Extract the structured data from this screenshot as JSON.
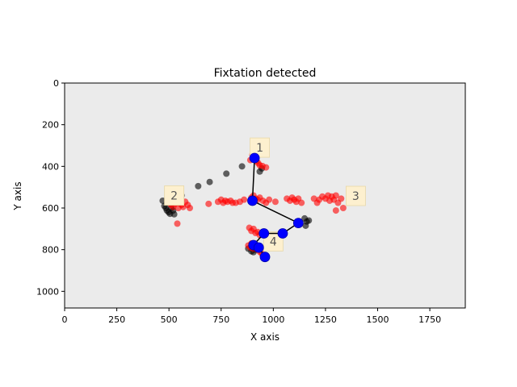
{
  "chart_data": {
    "type": "scatter",
    "title": "Fixtation detected",
    "xlabel": "X axis",
    "ylabel": "Y axis",
    "xlim": [
      0,
      1920
    ],
    "ylim": [
      1080,
      0
    ],
    "y_inverted": true,
    "x_ticks": [
      0,
      250,
      500,
      750,
      1000,
      1250,
      1500,
      1750
    ],
    "x_tick_labels": [
      "0",
      "250",
      "500",
      "750",
      "1000",
      "1250",
      "1500",
      "1750"
    ],
    "y_ticks": [
      0,
      200,
      400,
      600,
      800,
      1000
    ],
    "y_tick_labels": [
      "0",
      "200",
      "400",
      "600",
      "800",
      "1000"
    ],
    "background_color": "#ebebeb",
    "grid": false,
    "series": [
      {
        "role": "raw_gaze_points",
        "color": "#000000",
        "alpha": 0.6,
        "points": [
          [
            470,
            565
          ],
          [
            478,
            590
          ],
          [
            485,
            600
          ],
          [
            490,
            612
          ],
          [
            498,
            620
          ],
          [
            505,
            628
          ],
          [
            512,
            600
          ],
          [
            520,
            612
          ],
          [
            525,
            630
          ],
          [
            560,
            540
          ],
          [
            640,
            495
          ],
          [
            695,
            475
          ],
          [
            775,
            435
          ],
          [
            850,
            400
          ],
          [
            935,
            425
          ],
          [
            945,
            410
          ],
          [
            1150,
            650
          ],
          [
            1160,
            665
          ],
          [
            1170,
            660
          ],
          [
            1155,
            685
          ],
          [
            880,
            795
          ],
          [
            895,
            808
          ],
          [
            905,
            812
          ],
          [
            915,
            800
          ],
          [
            925,
            795
          ]
        ]
      },
      {
        "role": "fixation_samples",
        "color": "#ff0000",
        "alpha": 0.6,
        "points": [
          [
            495,
            565
          ],
          [
            502,
            575
          ],
          [
            510,
            585
          ],
          [
            515,
            560
          ],
          [
            520,
            595
          ],
          [
            525,
            570
          ],
          [
            530,
            580
          ],
          [
            538,
            560
          ],
          [
            545,
            600
          ],
          [
            550,
            575
          ],
          [
            560,
            585
          ],
          [
            568,
            595
          ],
          [
            578,
            570
          ],
          [
            590,
            585
          ],
          [
            600,
            600
          ],
          [
            540,
            675
          ],
          [
            690,
            580
          ],
          [
            735,
            570
          ],
          [
            750,
            560
          ],
          [
            760,
            575
          ],
          [
            770,
            565
          ],
          [
            780,
            570
          ],
          [
            795,
            565
          ],
          [
            805,
            575
          ],
          [
            820,
            575
          ],
          [
            840,
            570
          ],
          [
            860,
            560
          ],
          [
            900,
            345
          ],
          [
            910,
            360
          ],
          [
            920,
            375
          ],
          [
            928,
            385
          ],
          [
            935,
            395
          ],
          [
            948,
            398
          ],
          [
            965,
            405
          ],
          [
            890,
            370
          ],
          [
            895,
            550
          ],
          [
            905,
            540
          ],
          [
            915,
            555
          ],
          [
            925,
            560
          ],
          [
            935,
            550
          ],
          [
            950,
            565
          ],
          [
            965,
            575
          ],
          [
            980,
            560
          ],
          [
            1010,
            570
          ],
          [
            1065,
            555
          ],
          [
            1080,
            565
          ],
          [
            1090,
            550
          ],
          [
            1100,
            560
          ],
          [
            1110,
            570
          ],
          [
            1120,
            555
          ],
          [
            1135,
            575
          ],
          [
            1195,
            555
          ],
          [
            1210,
            575
          ],
          [
            1220,
            560
          ],
          [
            1235,
            545
          ],
          [
            1250,
            555
          ],
          [
            1262,
            540
          ],
          [
            1270,
            565
          ],
          [
            1280,
            545
          ],
          [
            1290,
            560
          ],
          [
            1300,
            540
          ],
          [
            1310,
            575
          ],
          [
            1325,
            555
          ],
          [
            1335,
            600
          ],
          [
            1300,
            612
          ],
          [
            885,
            695
          ],
          [
            895,
            710
          ],
          [
            905,
            700
          ],
          [
            915,
            720
          ],
          [
            925,
            715
          ],
          [
            935,
            730
          ],
          [
            880,
            780
          ],
          [
            890,
            790
          ],
          [
            895,
            770
          ],
          [
            905,
            795
          ],
          [
            915,
            780
          ],
          [
            925,
            800
          ],
          [
            935,
            810
          ],
          [
            945,
            820
          ]
        ]
      },
      {
        "role": "fixations",
        "color": "#0000ff",
        "points": [
          [
            910,
            360
          ],
          [
            900,
            565
          ],
          [
            1120,
            672
          ],
          [
            1045,
            722
          ],
          [
            955,
            722
          ],
          [
            905,
            778
          ],
          [
            930,
            790
          ],
          [
            960,
            835
          ]
        ]
      }
    ],
    "scanpath": [
      [
        910,
        360
      ],
      [
        900,
        565
      ],
      [
        1120,
        672
      ],
      [
        1045,
        722
      ],
      [
        955,
        722
      ],
      [
        905,
        778
      ],
      [
        930,
        790
      ],
      [
        960,
        835
      ]
    ],
    "annotations": [
      {
        "text": "1",
        "x": 935,
        "y": 310
      },
      {
        "text": "2",
        "x": 525,
        "y": 540
      },
      {
        "text": "3",
        "x": 1395,
        "y": 542
      },
      {
        "text": "4",
        "x": 1000,
        "y": 760
      }
    ]
  }
}
